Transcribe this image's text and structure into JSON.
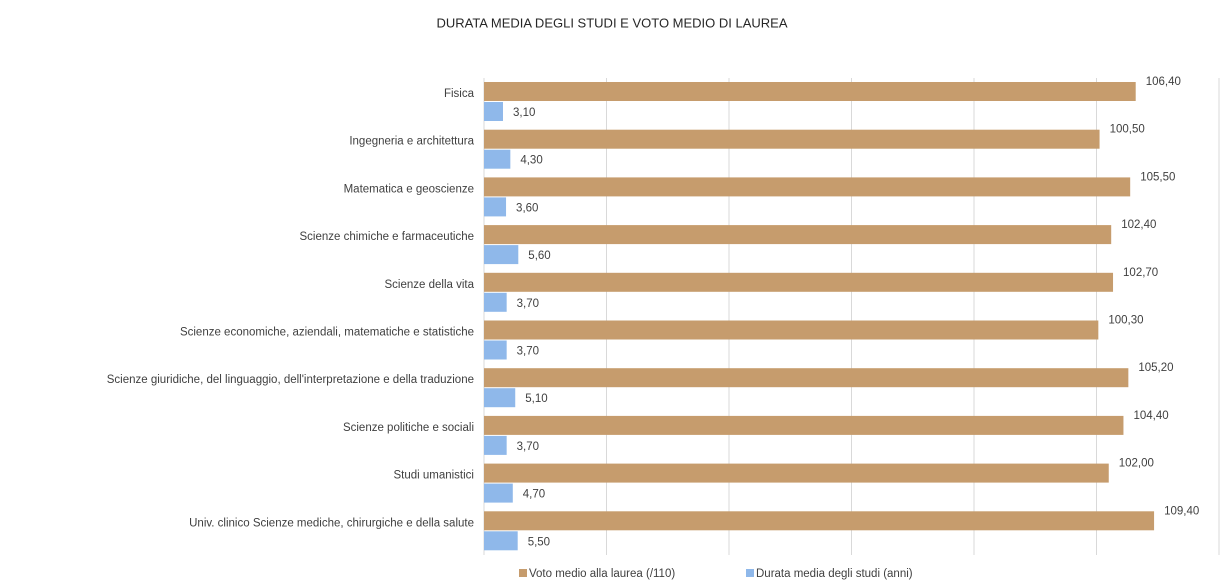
{
  "chart_data": {
    "type": "bar",
    "orientation": "horizontal",
    "title": "DURATA MEDIA DEGLI STUDI E VOTO MEDIO DI LAUREA",
    "categories": [
      "Fisica",
      "Ingegneria e architettura",
      "Matematica e geoscienze",
      "Scienze chimiche e farmaceutiche",
      "Scienze della vita",
      "Scienze economiche, aziendali, matematiche e statistiche",
      "Scienze giuridiche, del linguaggio, dell'interpretazione e della traduzione",
      "Scienze politiche e sociali",
      "Studi umanistici",
      "Univ. clinico Scienze mediche, chirurgiche e della salute"
    ],
    "series": [
      {
        "name": "Voto medio alla laurea (/110)",
        "color": "#c69c6d",
        "values": [
          106.4,
          100.5,
          105.5,
          102.4,
          102.7,
          100.3,
          105.2,
          104.4,
          102.0,
          109.4
        ],
        "value_labels": [
          "106,40",
          "100,50",
          "105,50",
          "102,40",
          "102,70",
          "100,30",
          "105,20",
          "104,40",
          "102,00",
          "109,40"
        ]
      },
      {
        "name": "Durata media degli studi (anni)",
        "color": "#8fb8ea",
        "values": [
          3.1,
          4.3,
          3.6,
          5.6,
          3.7,
          3.7,
          5.1,
          3.7,
          4.7,
          5.5
        ],
        "value_labels": [
          "3,10",
          "4,30",
          "3,60",
          "5,60",
          "3,70",
          "3,70",
          "5,10",
          "3,70",
          "4,70",
          "5,50"
        ]
      }
    ],
    "xlim": [
      0,
      120
    ],
    "xticks": [
      0,
      20,
      40,
      60,
      80,
      100,
      120
    ],
    "grid": true,
    "legend": "bottom"
  }
}
